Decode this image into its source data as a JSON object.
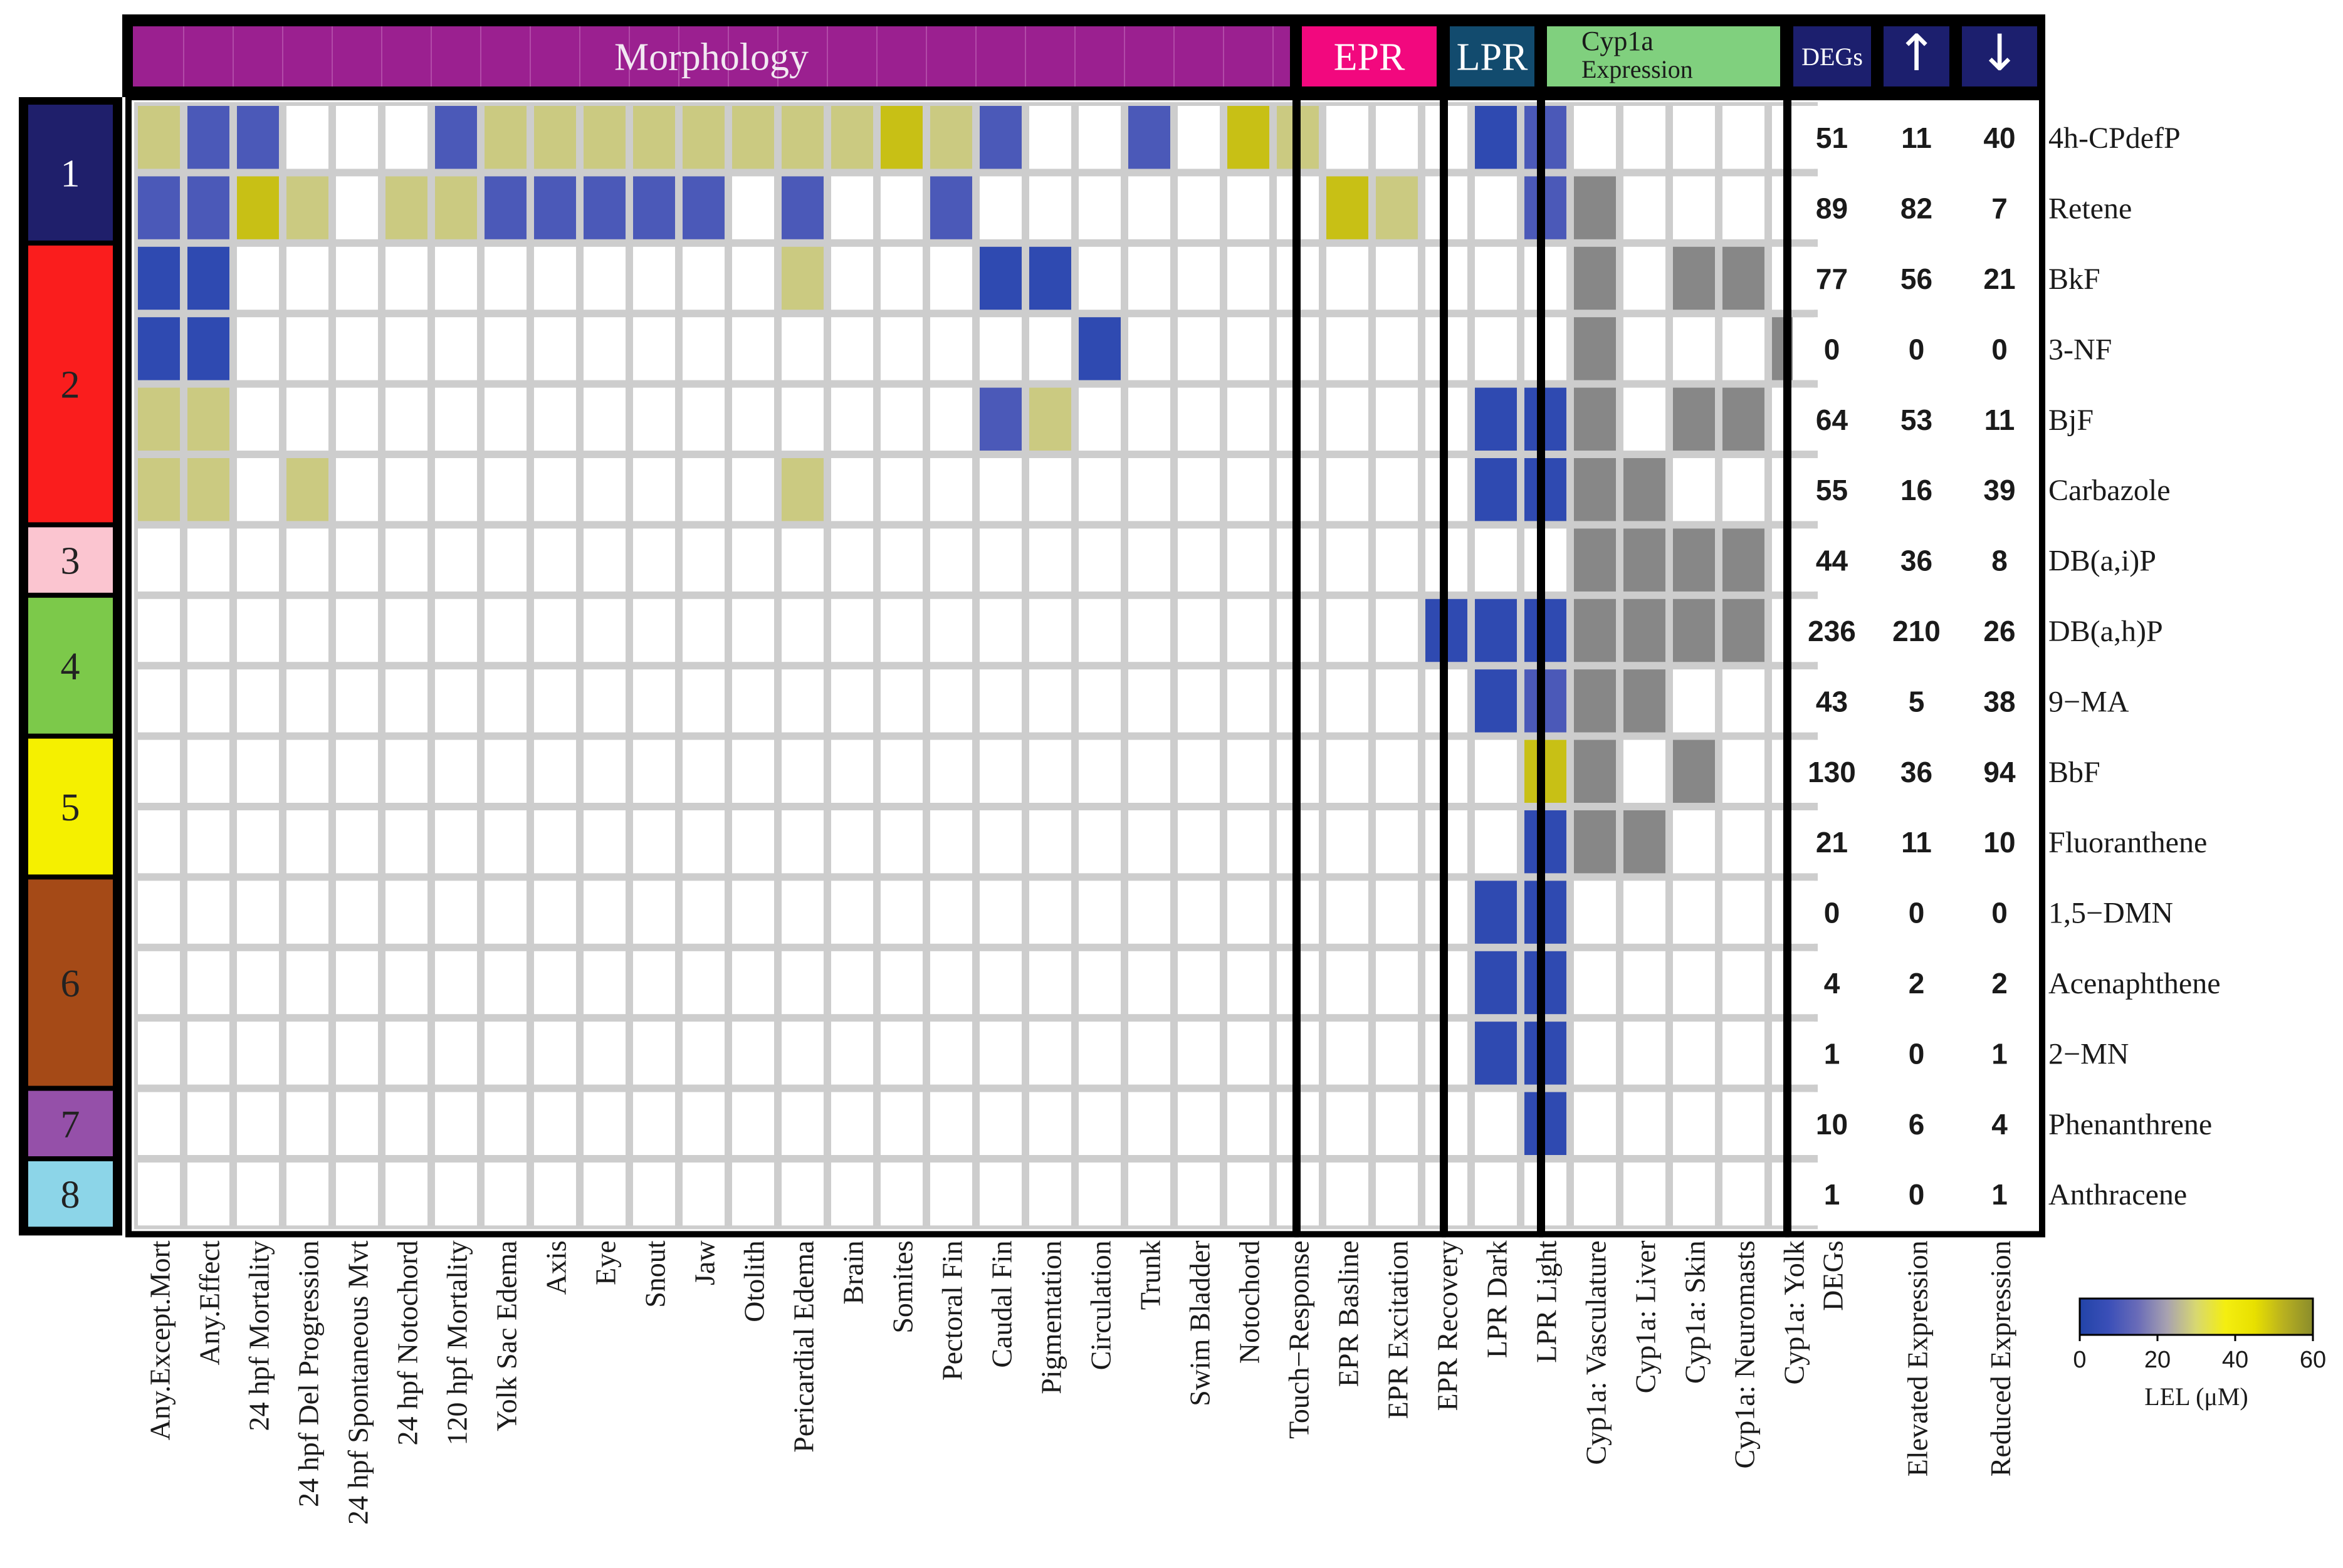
{
  "chart_data": {
    "type": "heatmap",
    "groups": [
      {
        "label": "Morphology",
        "color": "#9b2090",
        "text_color": "#f2e8f2"
      },
      {
        "label": "EPR",
        "color": "#f2087e",
        "text_color": "#ffffff"
      },
      {
        "label": "LPR",
        "color": "#124b6e",
        "text_color": "#ffffff"
      },
      {
        "label": "Cyp1a",
        "label2": "Expression",
        "color": "#80d07e",
        "text_color": "#1a1a1a"
      },
      {
        "label": "DEGs",
        "color": "#1c1f6e",
        "text_color": "#ffffff"
      }
    ],
    "columns": [
      "Any.Except.Mort",
      "Any.Effect",
      "24 hpf Mortality",
      "24 hpf Del Progression",
      "24 hpf Spontaneous Mvt",
      "24 hpf Notochord",
      "120 hpf Mortality",
      "Yolk Sac Edema",
      "Axis",
      "Eye",
      "Snout",
      "Jaw",
      "Otolith",
      "Pericardial Edema",
      "Brain",
      "Somites",
      "Pectoral Fin",
      "Caudal Fin",
      "Pigmentation",
      "Circulation",
      "Trunk",
      "Swim Bladder",
      "Notochord",
      "Touch−Response",
      "EPR Basline",
      "EPR Excitation",
      "EPR Recovery",
      "LPR Dark",
      "LPR Light",
      "Cyp1a: Vasculature",
      "Cyp1a: Liver",
      "Cyp1a: Skin",
      "Cyp1a: Neuromasts",
      "Cyp1a: Yolk"
    ],
    "deg_columns": [
      "DEGs",
      "Elevated Expression",
      "Reduced Expression"
    ],
    "deg_headers": [
      "DEGs",
      "↑",
      "↓"
    ],
    "clusters": [
      {
        "label": "1",
        "color": "#1f1f6b",
        "text_color": "#ffffff",
        "rows": 2
      },
      {
        "label": "2",
        "color": "#fa1d1d",
        "text_color": "#222222",
        "rows": 4
      },
      {
        "label": "3",
        "color": "#fbc5d0",
        "text_color": "#222222",
        "rows": 1
      },
      {
        "label": "4",
        "color": "#7cc94a",
        "text_color": "#222222",
        "rows": 2
      },
      {
        "label": "5",
        "color": "#f5f000",
        "text_color": "#222222",
        "rows": 2
      },
      {
        "label": "6",
        "color": "#a54a17",
        "text_color": "#222222",
        "rows": 3
      },
      {
        "label": "7",
        "color": "#9550a9",
        "text_color": "#222222",
        "rows": 1
      },
      {
        "label": "8",
        "color": "#8cd5e8",
        "text_color": "#222222",
        "rows": 1
      }
    ],
    "rows": [
      {
        "name": "4h-CPdefP",
        "cells": {
          "0": 28,
          "1": 10,
          "2": 10,
          "6": 10,
          "7": 28,
          "8": 28,
          "9": 28,
          "10": 28,
          "11": 28,
          "12": 28,
          "13": 28,
          "14": 28,
          "15": 50,
          "16": 28,
          "17": 10,
          "20": 10,
          "22": 50,
          "23": 28,
          "27": 4,
          "28": 10
        },
        "degs": [
          51,
          11,
          40
        ]
      },
      {
        "name": "Retene",
        "cells": {
          "0": 10,
          "1": 10,
          "2": 50,
          "3": 28,
          "5": 28,
          "6": 28,
          "7": 10,
          "8": 10,
          "9": 10,
          "10": 10,
          "11": 10,
          "13": 10,
          "16": 10,
          "24": 50,
          "25": 28,
          "28": 10
        },
        "expr": [
          29
        ],
        "degs": [
          89,
          82,
          7
        ]
      },
      {
        "name": "BkF",
        "cells": {
          "0": 4,
          "1": 4,
          "13": 28,
          "17": 4,
          "18": 4
        },
        "expr": [
          29,
          31,
          32
        ],
        "degs": [
          77,
          56,
          21
        ]
      },
      {
        "name": "3-NF",
        "cells": {
          "0": 4,
          "1": 4,
          "19": 4
        },
        "expr": [
          29,
          33
        ],
        "degs": [
          0,
          0,
          0
        ]
      },
      {
        "name": "BjF",
        "cells": {
          "0": 28,
          "1": 28,
          "17": 10,
          "18": 28,
          "27": 4,
          "28": 4
        },
        "expr": [
          29,
          31,
          32
        ],
        "degs": [
          64,
          53,
          11
        ]
      },
      {
        "name": "Carbazole",
        "cells": {
          "0": 28,
          "1": 28,
          "3": 28,
          "13": 28,
          "27": 4,
          "28": 4
        },
        "expr": [
          29,
          30
        ],
        "degs": [
          55,
          16,
          39
        ]
      },
      {
        "name": "DB(a,i)P",
        "cells": {},
        "expr": [
          29,
          30,
          31,
          32
        ],
        "degs": [
          44,
          36,
          8
        ]
      },
      {
        "name": "DB(a,h)P",
        "cells": {
          "26": 4,
          "27": 4,
          "28": 4
        },
        "expr": [
          29,
          30,
          31,
          32
        ],
        "degs": [
          236,
          210,
          26
        ]
      },
      {
        "name": "9−MA",
        "cells": {
          "27": 4,
          "28": 10
        },
        "expr": [
          29,
          30
        ],
        "degs": [
          43,
          5,
          38
        ]
      },
      {
        "name": "BbF",
        "cells": {
          "28": 50
        },
        "expr": [
          29,
          31
        ],
        "degs": [
          130,
          36,
          94
        ]
      },
      {
        "name": "Fluoranthene",
        "cells": {
          "28": 4
        },
        "expr": [
          29,
          30
        ],
        "degs": [
          21,
          11,
          10
        ]
      },
      {
        "name": "1,5−DMN",
        "cells": {
          "27": 4,
          "28": 4
        },
        "degs": [
          0,
          0,
          0
        ]
      },
      {
        "name": "Acenaphthene",
        "cells": {
          "27": 4,
          "28": 4
        },
        "degs": [
          4,
          2,
          2
        ]
      },
      {
        "name": "2−MN",
        "cells": {
          "27": 4,
          "28": 4
        },
        "degs": [
          1,
          0,
          1
        ]
      },
      {
        "name": "Phenanthrene",
        "cells": {
          "28": 4
        },
        "degs": [
          10,
          6,
          4
        ]
      },
      {
        "name": "Anthracene",
        "cells": {},
        "degs": [
          1,
          0,
          1
        ]
      }
    ],
    "expression_color": "#878787",
    "colorbar": {
      "label": "LEL (μM)",
      "range": [
        0,
        60
      ],
      "ticks": [
        0,
        20,
        40,
        60
      ],
      "stops": [
        "#2244a8",
        "#3b4fb8",
        "#6a6cb8",
        "#a8a2b0",
        "#d8d870",
        "#f4ee10",
        "#e8e000",
        "#b8b020",
        "#8a8c2c"
      ]
    }
  }
}
